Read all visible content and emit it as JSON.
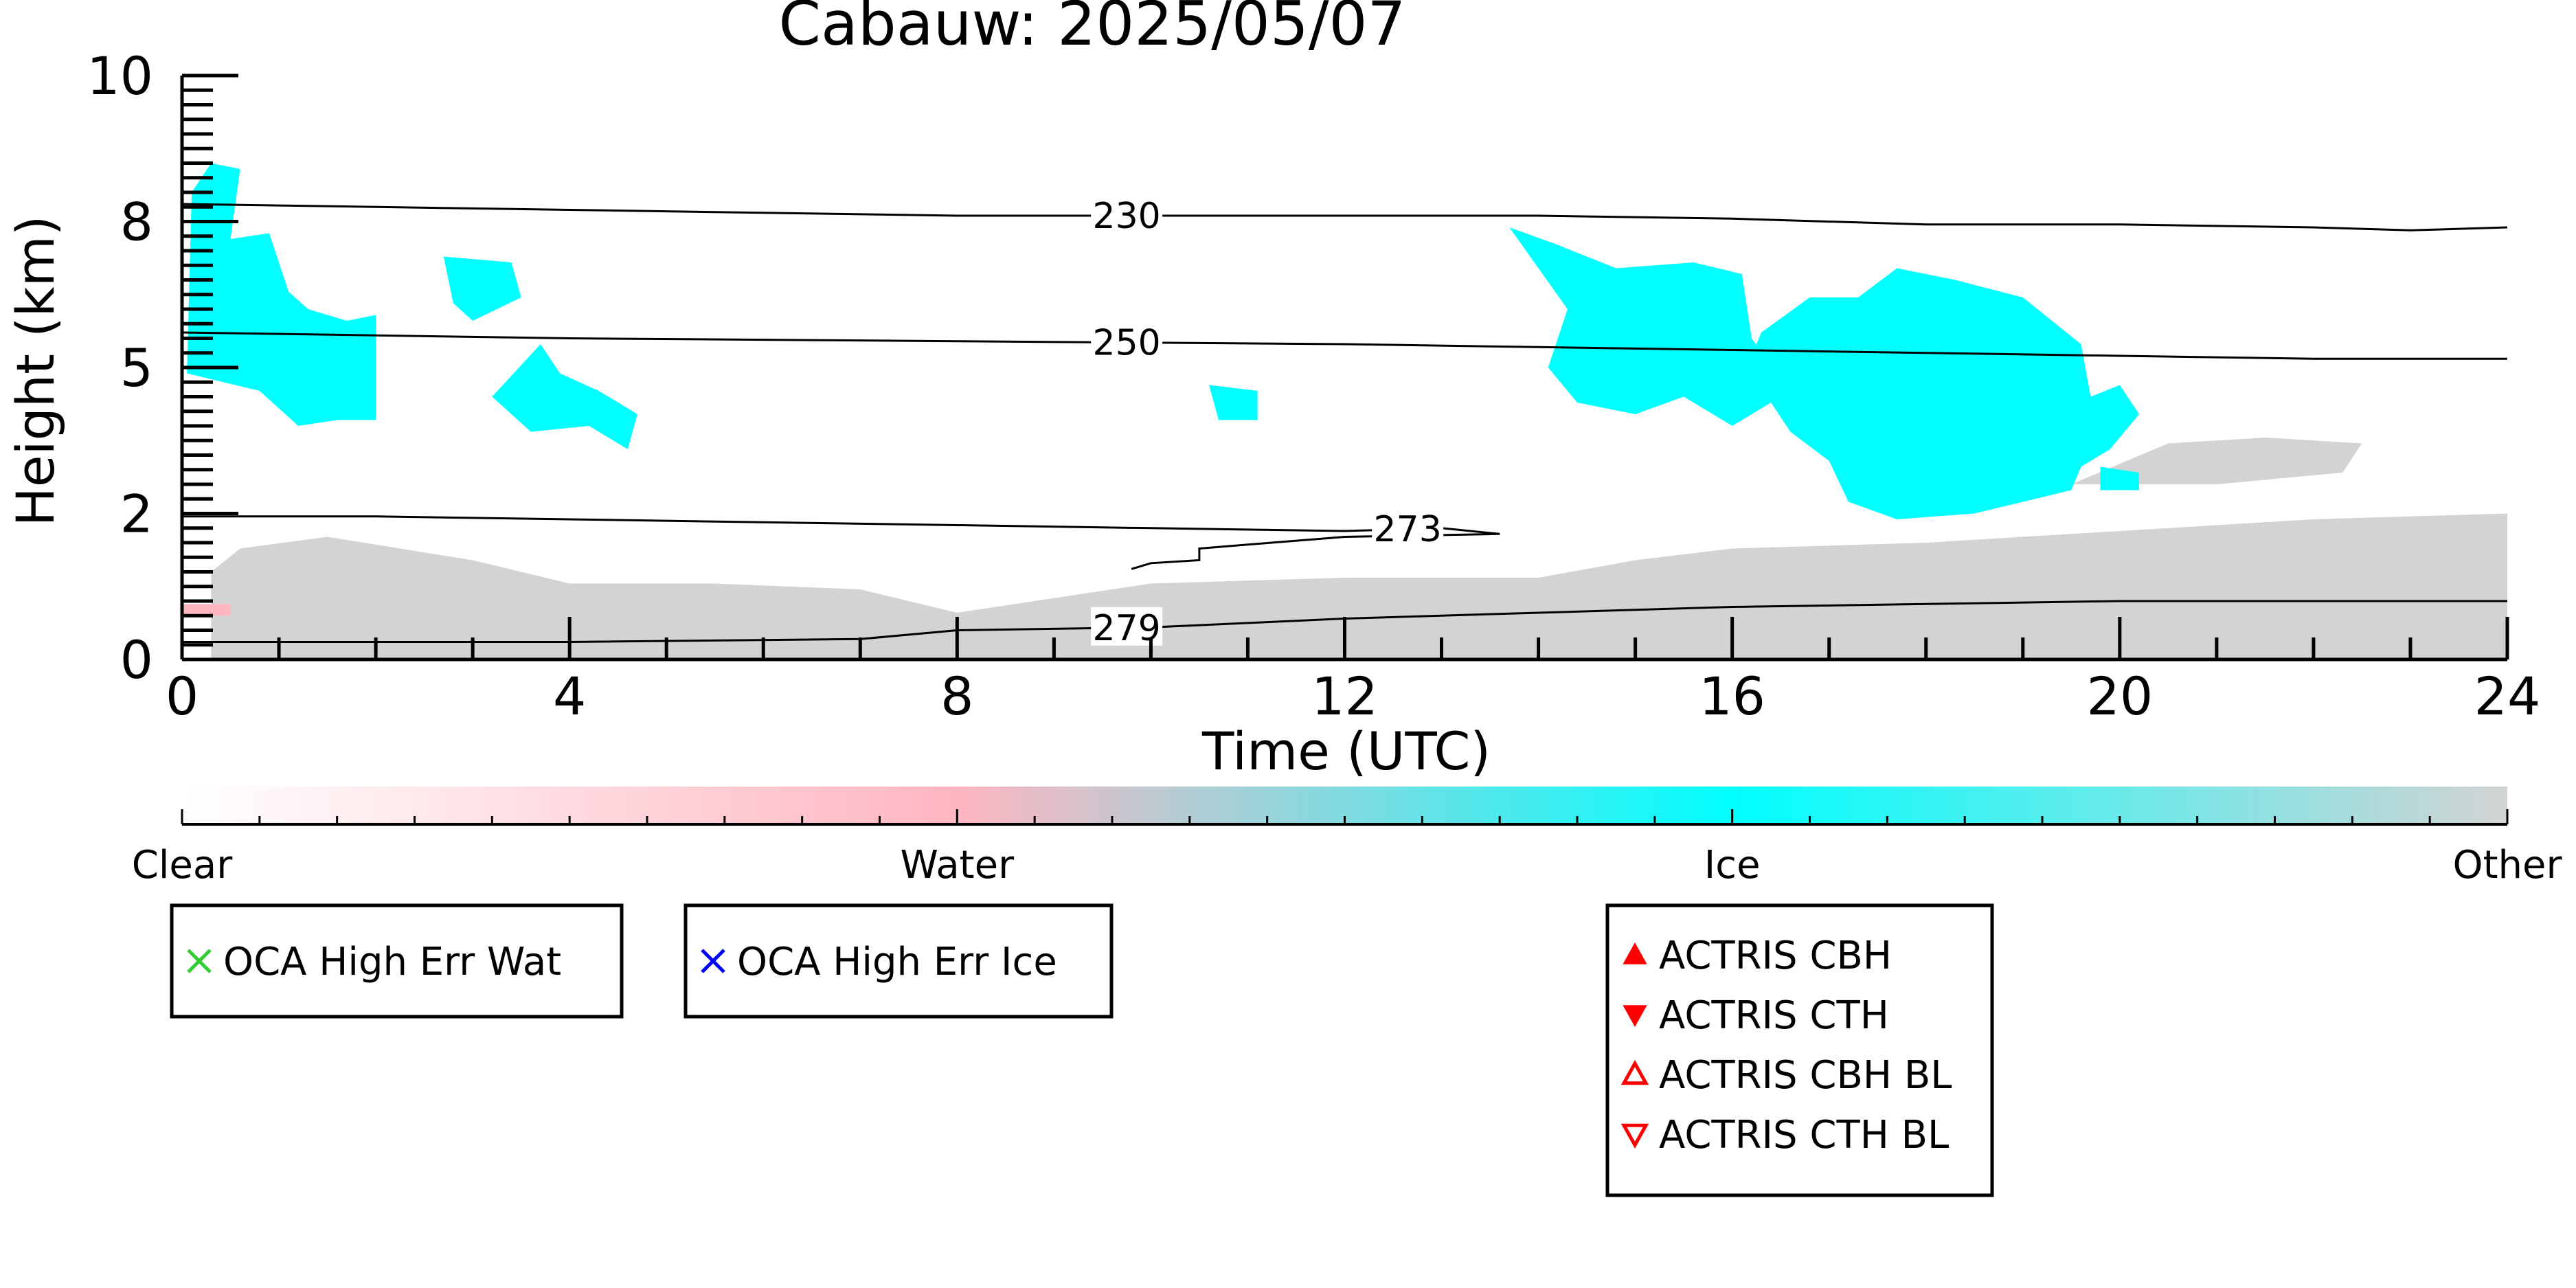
{
  "chart_data": {
    "type": "heatmap",
    "title": "Cabauw: 2025/05/07",
    "xlabel": "Time (UTC)",
    "ylabel": "Height (km)",
    "xlim": [
      0,
      24
    ],
    "ylim": [
      0,
      10
    ],
    "x_ticks": [
      0,
      4,
      8,
      12,
      16,
      20,
      24
    ],
    "x_tick_labels": [
      "0",
      "4",
      "8",
      "12",
      "16",
      "20",
      "24"
    ],
    "y_ticks": [
      0,
      2.5,
      5,
      7.5,
      10
    ],
    "y_tick_labels": [
      "0",
      "2",
      "5",
      "8",
      "10"
    ],
    "grid": false,
    "classes": [
      {
        "name": "Clear",
        "color": "#ffffff"
      },
      {
        "name": "Water",
        "color": "#ffb6c1"
      },
      {
        "name": "Ice",
        "color": "#00ffff"
      },
      {
        "name": "Other",
        "color": "#d3d3d3"
      }
    ],
    "legend_placement": "bottom",
    "regions": [
      {
        "class": "Other",
        "points": [
          [
            0.3,
            0
          ],
          [
            0.3,
            1.5
          ],
          [
            0.6,
            1.9
          ],
          [
            1.5,
            2.1
          ],
          [
            3,
            1.7
          ],
          [
            4,
            1.3
          ],
          [
            5.5,
            1.3
          ],
          [
            7,
            1.2
          ],
          [
            8,
            0.8
          ],
          [
            10,
            1.3
          ],
          [
            12,
            1.4
          ],
          [
            14,
            1.4
          ],
          [
            15,
            1.7
          ],
          [
            16,
            1.9
          ],
          [
            18,
            2.0
          ],
          [
            20,
            2.2
          ],
          [
            22,
            2.4
          ],
          [
            24,
            2.5
          ],
          [
            24,
            0
          ]
        ]
      },
      {
        "class": "Other",
        "points": [
          [
            19.5,
            3.0
          ],
          [
            20.5,
            3.7
          ],
          [
            21.5,
            3.8
          ],
          [
            22.5,
            3.7
          ],
          [
            22.3,
            3.2
          ],
          [
            21,
            3.0
          ],
          [
            20,
            3.0
          ]
        ]
      },
      {
        "class": "Water",
        "points": [
          [
            0,
            0.75
          ],
          [
            0.5,
            0.75
          ],
          [
            0.5,
            0.95
          ],
          [
            0,
            0.95
          ]
        ]
      },
      {
        "class": "Ice",
        "points": [
          [
            0.05,
            4.9
          ],
          [
            0.1,
            8.0
          ],
          [
            0.3,
            8.5
          ],
          [
            0.6,
            8.4
          ],
          [
            0.5,
            7.2
          ],
          [
            0.9,
            7.3
          ],
          [
            1.1,
            6.3
          ],
          [
            1.3,
            6.0
          ],
          [
            1.7,
            5.8
          ],
          [
            2.0,
            5.9
          ],
          [
            2.0,
            4.1
          ],
          [
            1.6,
            4.1
          ],
          [
            1.2,
            4.0
          ],
          [
            0.8,
            4.6
          ],
          [
            0.3,
            4.8
          ]
        ]
      },
      {
        "class": "Ice",
        "points": [
          [
            2.7,
            6.9
          ],
          [
            3.4,
            6.8
          ],
          [
            3.5,
            6.2
          ],
          [
            3.0,
            5.8
          ],
          [
            2.8,
            6.1
          ]
        ]
      },
      {
        "class": "Ice",
        "points": [
          [
            3.2,
            4.5
          ],
          [
            3.7,
            5.4
          ],
          [
            3.9,
            4.9
          ],
          [
            4.3,
            4.6
          ],
          [
            4.7,
            4.2
          ],
          [
            4.6,
            3.6
          ],
          [
            4.2,
            4.0
          ],
          [
            3.6,
            3.9
          ],
          [
            3.4,
            4.2
          ]
        ]
      },
      {
        "class": "Ice",
        "points": [
          [
            10.6,
            4.7
          ],
          [
            11.1,
            4.6
          ],
          [
            11.1,
            4.1
          ],
          [
            10.7,
            4.1
          ]
        ]
      },
      {
        "class": "Ice",
        "points": [
          [
            13.7,
            7.4
          ],
          [
            14.2,
            7.1
          ],
          [
            14.8,
            6.7
          ],
          [
            15.6,
            6.8
          ],
          [
            16.1,
            6.6
          ],
          [
            16.2,
            5.5
          ],
          [
            16.6,
            4.6
          ],
          [
            16.0,
            4.0
          ],
          [
            15.5,
            4.5
          ],
          [
            15.0,
            4.2
          ],
          [
            14.4,
            4.4
          ],
          [
            14.1,
            5.0
          ],
          [
            14.3,
            6.0
          ]
        ]
      },
      {
        "class": "Ice",
        "points": [
          [
            16.3,
            5.6
          ],
          [
            16.8,
            6.2
          ],
          [
            17.3,
            6.2
          ],
          [
            17.7,
            6.7
          ],
          [
            18.3,
            6.5
          ],
          [
            19.0,
            6.2
          ],
          [
            19.6,
            5.4
          ],
          [
            19.7,
            4.5
          ],
          [
            20.0,
            4.7
          ],
          [
            20.2,
            4.2
          ],
          [
            19.9,
            3.6
          ],
          [
            19.6,
            3.3
          ],
          [
            19.5,
            2.9
          ],
          [
            19.0,
            2.7
          ],
          [
            18.5,
            2.5
          ],
          [
            17.7,
            2.4
          ],
          [
            17.2,
            2.7
          ],
          [
            17.0,
            3.4
          ],
          [
            16.6,
            3.9
          ],
          [
            16.4,
            4.4
          ],
          [
            16.2,
            5.2
          ]
        ]
      },
      {
        "class": "Ice",
        "points": [
          [
            19.8,
            3.3
          ],
          [
            20.2,
            3.2
          ],
          [
            20.2,
            2.9
          ],
          [
            19.8,
            2.9
          ]
        ]
      }
    ],
    "contours": [
      {
        "label": "230",
        "label_x": 9.75,
        "points": [
          [
            0,
            7.8
          ],
          [
            4,
            7.7
          ],
          [
            8,
            7.6
          ],
          [
            12,
            7.6
          ],
          [
            14,
            7.6
          ],
          [
            16,
            7.55
          ],
          [
            18,
            7.45
          ],
          [
            20,
            7.45
          ],
          [
            22,
            7.4
          ],
          [
            23,
            7.35
          ],
          [
            24,
            7.4
          ]
        ]
      },
      {
        "label": "250",
        "label_x": 9.75,
        "points": [
          [
            0,
            5.6
          ],
          [
            4,
            5.5
          ],
          [
            8,
            5.45
          ],
          [
            12,
            5.4
          ],
          [
            14,
            5.35
          ],
          [
            16,
            5.3
          ],
          [
            18,
            5.25
          ],
          [
            20,
            5.2
          ],
          [
            22,
            5.15
          ],
          [
            24,
            5.15
          ]
        ]
      },
      {
        "label": "273",
        "label_x": 12.65,
        "points": [
          [
            0,
            2.45
          ],
          [
            2,
            2.45
          ],
          [
            4,
            2.4
          ],
          [
            8,
            2.3
          ],
          [
            10,
            2.25
          ],
          [
            12,
            2.2
          ],
          [
            13.0,
            2.25
          ],
          [
            13.6,
            2.15
          ],
          [
            12.0,
            2.1
          ],
          [
            10.5,
            1.9
          ],
          [
            10.5,
            1.7
          ],
          [
            10.0,
            1.65
          ],
          [
            9.8,
            1.55
          ]
        ]
      },
      {
        "label": "279",
        "label_x": 9.75,
        "points": [
          [
            0,
            0.3
          ],
          [
            4,
            0.3
          ],
          [
            7,
            0.35
          ],
          [
            8,
            0.5
          ],
          [
            10,
            0.55
          ],
          [
            12,
            0.7
          ],
          [
            14,
            0.8
          ],
          [
            16,
            0.9
          ],
          [
            18,
            0.95
          ],
          [
            20,
            1.0
          ],
          [
            22,
            1.0
          ],
          [
            24,
            1.0
          ]
        ]
      }
    ],
    "legends": [
      {
        "entries": [
          {
            "label": "OCA High Err Wat",
            "marker": "x",
            "color": "#32cd32"
          }
        ]
      },
      {
        "entries": [
          {
            "label": "OCA High Err Ice",
            "marker": "x",
            "color": "#0000ff"
          }
        ]
      },
      {
        "entries": [
          {
            "label": "ACTRIS CBH",
            "marker": "triangle-up-filled",
            "color": "#ff0000"
          },
          {
            "label": "ACTRIS CTH",
            "marker": "triangle-down-filled",
            "color": "#ff0000"
          },
          {
            "label": "ACTRIS CBH BL",
            "marker": "triangle-up-open",
            "color": "#ff0000"
          },
          {
            "label": "ACTRIS CTH BL",
            "marker": "triangle-down-open",
            "color": "#ff0000"
          }
        ]
      }
    ]
  }
}
